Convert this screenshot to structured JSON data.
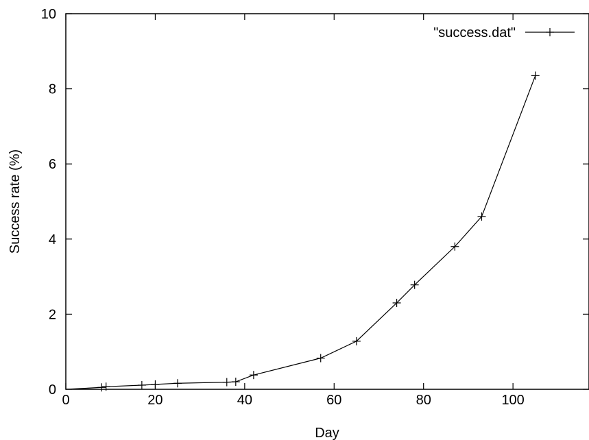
{
  "chart_data": {
    "type": "line",
    "title": "",
    "xlabel": "Day",
    "ylabel": "Success rate (%)",
    "xlim": [
      0,
      117
    ],
    "ylim": [
      0,
      10
    ],
    "xticks": [
      "0",
      "20",
      "40",
      "60",
      "80",
      "100"
    ],
    "yticks": [
      "0",
      "2",
      "4",
      "6",
      "8",
      "10"
    ],
    "grid": false,
    "legend_position": "top-right",
    "series": [
      {
        "name": "\"success.dat\"",
        "marker": "plus",
        "color": "#000000",
        "x": [
          0,
          8,
          9,
          17,
          20,
          25,
          36,
          38,
          42,
          57,
          65,
          74,
          78,
          87,
          93,
          105
        ],
        "y": [
          0,
          0.05,
          0.07,
          0.11,
          0.13,
          0.16,
          0.19,
          0.2,
          0.38,
          0.83,
          1.28,
          2.3,
          2.78,
          3.8,
          4.6,
          8.35
        ]
      }
    ]
  }
}
